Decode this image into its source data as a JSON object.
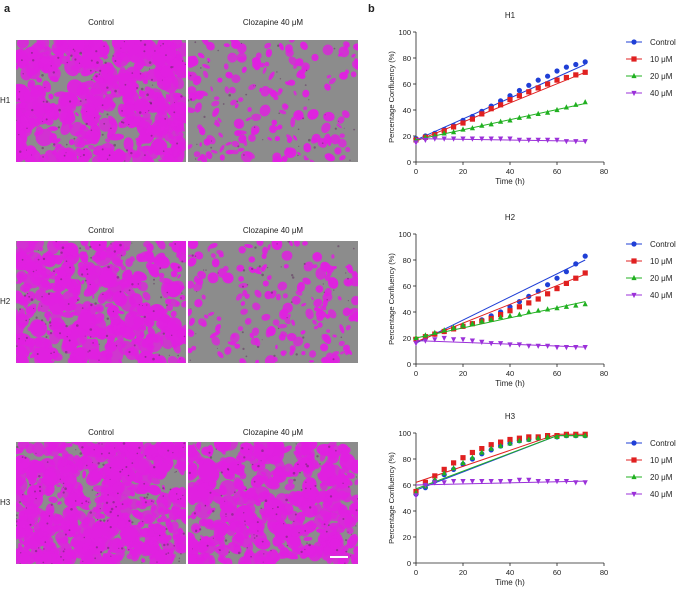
{
  "panel_a_letter": "a",
  "panel_b_letter": "b",
  "micrographs": {
    "col_labels": [
      "Control",
      "Clozapine 40 μM"
    ],
    "rows": [
      {
        "label": "H1",
        "control_density": 0.78,
        "treated_density": 0.22
      },
      {
        "label": "H2",
        "control_density": 0.72,
        "treated_density": 0.24
      },
      {
        "label": "H3",
        "control_density": 0.93,
        "treated_density": 0.7
      }
    ],
    "color_mask": "#e020e0",
    "color_background": "#8c8c8c"
  },
  "chart_data": [
    {
      "type": "scatter",
      "title": "H1",
      "xlabel": "Time (h)",
      "ylabel": "Percentage Confluency (%)",
      "xlim": [
        0,
        80
      ],
      "ylim": [
        0,
        100
      ],
      "xticks": [
        0,
        20,
        40,
        60,
        80
      ],
      "yticks": [
        0,
        20,
        40,
        60,
        80,
        100
      ],
      "legend": "right",
      "series": [
        {
          "name": "Control",
          "color": "#1f3fd6",
          "marker": "circle",
          "x": [
            0,
            4,
            8,
            12,
            16,
            20,
            24,
            28,
            32,
            36,
            40,
            44,
            48,
            52,
            56,
            60,
            64,
            68,
            72
          ],
          "y": [
            18,
            20,
            22,
            25,
            28,
            32,
            35,
            39,
            43,
            47,
            51,
            55,
            59,
            63,
            66,
            70,
            73,
            75,
            77
          ],
          "fit": [
            [
              0,
              17
            ],
            [
              72,
              75
            ]
          ]
        },
        {
          "name": "10 μM",
          "color": "#e02020",
          "marker": "square",
          "x": [
            0,
            4,
            8,
            12,
            16,
            20,
            24,
            28,
            32,
            36,
            40,
            44,
            48,
            52,
            56,
            60,
            64,
            68,
            72
          ],
          "y": [
            17,
            19,
            21,
            24,
            27,
            30,
            33,
            37,
            41,
            44,
            48,
            51,
            54,
            57,
            60,
            63,
            65,
            67,
            69
          ],
          "fit": [
            [
              0,
              16
            ],
            [
              72,
              69
            ]
          ]
        },
        {
          "name": "20 μM",
          "color": "#20b020",
          "marker": "triangle-up",
          "x": [
            0,
            4,
            8,
            12,
            16,
            20,
            24,
            28,
            32,
            36,
            40,
            44,
            48,
            52,
            56,
            60,
            64,
            68,
            72
          ],
          "y": [
            17,
            19,
            20,
            22,
            23,
            25,
            26,
            28,
            29,
            31,
            32,
            34,
            35,
            37,
            38,
            40,
            42,
            44,
            46
          ],
          "fit": [
            [
              0,
              17
            ],
            [
              72,
              45
            ]
          ]
        },
        {
          "name": "40 μM",
          "color": "#9b30d9",
          "marker": "triangle-down",
          "x": [
            0,
            4,
            8,
            12,
            16,
            20,
            24,
            28,
            32,
            36,
            40,
            44,
            48,
            52,
            56,
            60,
            64,
            68,
            72
          ],
          "y": [
            15,
            17,
            18,
            18,
            18,
            18,
            18,
            18,
            18,
            18,
            18,
            17,
            17,
            17,
            17,
            17,
            16,
            16,
            16
          ],
          "fit": [
            [
              0,
              18
            ],
            [
              72,
              16
            ]
          ]
        }
      ]
    },
    {
      "type": "scatter",
      "title": "H2",
      "xlabel": "Time (h)",
      "ylabel": "Percentage Confluency (%)",
      "xlim": [
        0,
        80
      ],
      "ylim": [
        0,
        100
      ],
      "xticks": [
        0,
        20,
        40,
        60,
        80
      ],
      "yticks": [
        0,
        20,
        40,
        60,
        80,
        100
      ],
      "legend": "right",
      "series": [
        {
          "name": "Control",
          "color": "#1f3fd6",
          "marker": "circle",
          "x": [
            0,
            4,
            8,
            12,
            16,
            20,
            24,
            28,
            32,
            36,
            40,
            44,
            48,
            52,
            56,
            60,
            64,
            68,
            72
          ],
          "y": [
            19,
            21,
            23,
            25,
            27,
            29,
            31,
            34,
            37,
            40,
            44,
            48,
            52,
            56,
            61,
            66,
            71,
            77,
            83
          ],
          "fit": [
            [
              0,
              16
            ],
            [
              72,
              80
            ]
          ]
        },
        {
          "name": "10 μM",
          "color": "#e02020",
          "marker": "square",
          "x": [
            0,
            4,
            8,
            12,
            16,
            20,
            24,
            28,
            32,
            36,
            40,
            44,
            48,
            52,
            56,
            60,
            64,
            68,
            72
          ],
          "y": [
            19,
            21,
            23,
            25,
            27,
            29,
            31,
            33,
            35,
            38,
            41,
            44,
            47,
            50,
            54,
            58,
            62,
            66,
            70
          ],
          "fit": [
            [
              0,
              17
            ],
            [
              72,
              69
            ]
          ]
        },
        {
          "name": "20 μM",
          "color": "#20b020",
          "marker": "triangle-up",
          "x": [
            0,
            4,
            8,
            12,
            16,
            20,
            24,
            28,
            32,
            36,
            40,
            44,
            48,
            52,
            56,
            60,
            64,
            68,
            72
          ],
          "y": [
            20,
            22,
            24,
            26,
            28,
            30,
            31,
            33,
            34,
            36,
            37,
            38,
            40,
            41,
            42,
            43,
            44,
            45,
            46
          ],
          "fit": [
            [
              0,
              20
            ],
            [
              72,
              48
            ]
          ]
        },
        {
          "name": "40 μM",
          "color": "#9b30d9",
          "marker": "triangle-down",
          "x": [
            0,
            4,
            8,
            12,
            16,
            20,
            24,
            28,
            32,
            36,
            40,
            44,
            48,
            52,
            56,
            60,
            64,
            68,
            72
          ],
          "y": [
            16,
            18,
            19,
            20,
            19,
            19,
            18,
            17,
            16,
            16,
            15,
            15,
            14,
            14,
            14,
            13,
            13,
            13,
            13
          ],
          "fit": [
            [
              0,
              18
            ],
            [
              72,
              13
            ]
          ]
        }
      ]
    },
    {
      "type": "scatter",
      "title": "H3",
      "xlabel": "Time (h)",
      "ylabel": "Percentage Confluency (%)",
      "xlim": [
        0,
        80
      ],
      "ylim": [
        0,
        100
      ],
      "xticks": [
        0,
        20,
        40,
        60,
        80
      ],
      "yticks": [
        0,
        20,
        40,
        60,
        80,
        100
      ],
      "legend": "right",
      "series": [
        {
          "name": "Control",
          "color": "#1f3fd6",
          "marker": "circle",
          "x": [
            0,
            4,
            8,
            12,
            16,
            20,
            24,
            28,
            32,
            36,
            40,
            44,
            48,
            52,
            56,
            60,
            64,
            68,
            72
          ],
          "y": [
            53,
            58,
            63,
            68,
            72,
            76,
            80,
            84,
            87,
            90,
            92,
            94,
            95,
            96,
            97,
            97,
            98,
            98,
            98
          ],
          "fit": [
            [
              0,
              56
            ],
            [
              60,
              98
            ],
            [
              72,
              98
            ]
          ]
        },
        {
          "name": "10 μM",
          "color": "#e02020",
          "marker": "square",
          "x": [
            0,
            4,
            8,
            12,
            16,
            20,
            24,
            28,
            32,
            36,
            40,
            44,
            48,
            52,
            56,
            60,
            64,
            68,
            72
          ],
          "y": [
            55,
            62,
            67,
            72,
            77,
            81,
            85,
            88,
            91,
            93,
            95,
            96,
            97,
            97,
            98,
            98,
            99,
            99,
            99
          ],
          "fit": [
            [
              0,
              62
            ],
            [
              60,
              99
            ],
            [
              72,
              99
            ]
          ]
        },
        {
          "name": "20 μM",
          "color": "#20b020",
          "marker": "triangle-up",
          "x": [
            0,
            4,
            8,
            12,
            16,
            20,
            24,
            28,
            32,
            36,
            40,
            44,
            48,
            52,
            56,
            60,
            64,
            68,
            72
          ],
          "y": [
            54,
            59,
            64,
            69,
            73,
            77,
            81,
            85,
            88,
            90,
            92,
            94,
            95,
            96,
            97,
            97,
            98,
            98,
            98
          ],
          "fit": [
            [
              0,
              57
            ],
            [
              60,
              98
            ],
            [
              72,
              98
            ]
          ]
        },
        {
          "name": "40 μM",
          "color": "#9b30d9",
          "marker": "triangle-down",
          "x": [
            0,
            4,
            8,
            12,
            16,
            20,
            24,
            28,
            32,
            36,
            40,
            44,
            48,
            52,
            56,
            60,
            64,
            68,
            72
          ],
          "y": [
            52,
            60,
            62,
            62,
            63,
            63,
            63,
            63,
            63,
            63,
            63,
            64,
            64,
            63,
            63,
            63,
            63,
            62,
            62
          ],
          "fit": [
            [
              0,
              60
            ],
            [
              72,
              63
            ]
          ]
        }
      ]
    }
  ]
}
